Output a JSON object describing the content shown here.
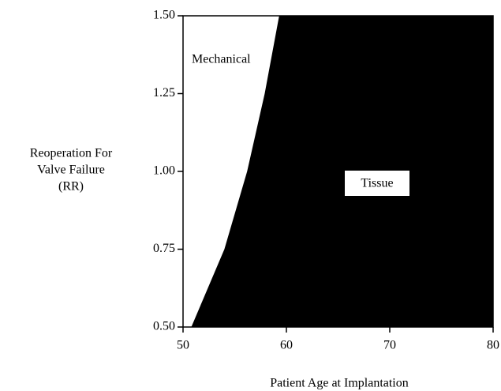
{
  "chart_data": {
    "type": "area",
    "x_label": "Patient Age at Implantation",
    "y_label": [
      "Reoperation For",
      "Valve Failure",
      "(RR)"
    ],
    "annotations": [
      "Mechanical",
      "Tissue"
    ],
    "x": [
      50.8,
      54,
      56.2,
      57.9,
      59.3
    ],
    "values": [
      0.5,
      0.75,
      1.0,
      1.25,
      1.5
    ],
    "color": "#000000",
    "xlim": [
      50,
      80
    ],
    "ylim": [
      0.5,
      1.5
    ],
    "xticks": [
      50,
      60,
      70,
      80
    ],
    "yticks": [
      {
        "value": 0.5,
        "label": "0.50"
      },
      {
        "value": 0.75,
        "label": "0.75"
      },
      {
        "value": 1.0,
        "label": "1.00"
      },
      {
        "value": 1.25,
        "label": "1.25"
      },
      {
        "value": 1.5,
        "label": "1.50"
      }
    ]
  }
}
